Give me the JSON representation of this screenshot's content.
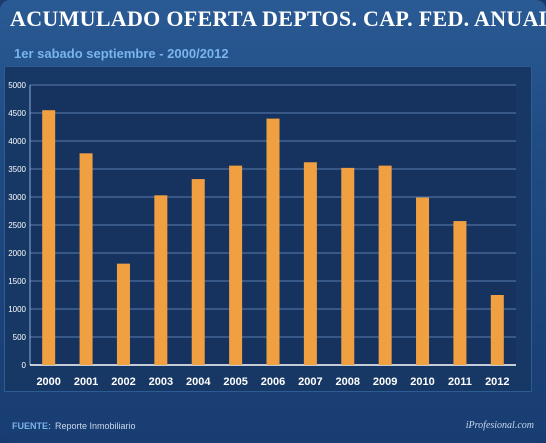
{
  "header": {
    "title": "ACUMULADO OFERTA DEPTOS. CAP. FED. ANUAL",
    "subtitle": "1er sabado septiembre - 2000/2012"
  },
  "footer": {
    "source_label": "FUENTE:",
    "source_text": "Reporte Inmobiliario",
    "brand": "iProfesional.com"
  },
  "colors": {
    "bar": "#f0a040",
    "grid": "#5a7db0",
    "axis_text": "#ffffff"
  },
  "chart_data": {
    "type": "bar",
    "categories": [
      "2000",
      "2001",
      "2002",
      "2003",
      "2004",
      "2005",
      "2006",
      "2007",
      "2008",
      "2009",
      "2010",
      "2011",
      "2012"
    ],
    "values": [
      4550,
      3780,
      1810,
      3030,
      3320,
      3560,
      4400,
      3620,
      3520,
      3560,
      2990,
      2570,
      1250
    ],
    "yticks": [
      0,
      500,
      1000,
      1500,
      2000,
      2500,
      3000,
      3500,
      4000,
      4500,
      5000
    ],
    "ylim": [
      0,
      5000
    ],
    "grid": true,
    "title": "ACUMULADO OFERTA DEPTOS. CAP. FED. ANUAL",
    "subtitle": "1er sabado septiembre - 2000/2012"
  }
}
